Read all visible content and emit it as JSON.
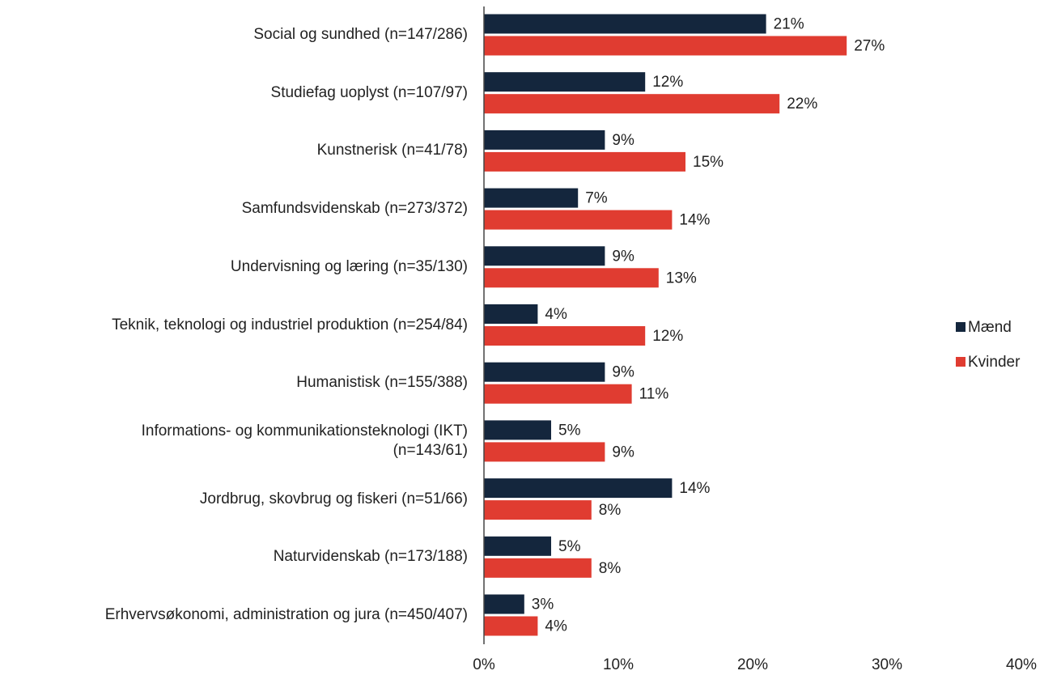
{
  "chart_data": {
    "type": "barh",
    "categories": [
      "Social og sundhed (n=147/286)",
      "Studiefag uoplyst (n=107/97)",
      "Kunstnerisk (n=41/78)",
      "Samfundsvidenskab (n=273/372)",
      "Undervisning og læring (n=35/130)",
      "Teknik, teknologi og industriel produktion (n=254/84)",
      "Humanistisk (n=155/388)",
      "Informations- og kommunikationsteknologi (IKT)\n(n=143/61)",
      "Jordbrug, skovbrug og fiskeri (n=51/66)",
      "Naturvidenskab (n=173/188)",
      "Erhvervsøkonomi, administration og jura (n=450/407)"
    ],
    "series": [
      {
        "name": "Mænd",
        "color": "#14263d",
        "values": [
          21,
          12,
          9,
          7,
          9,
          4,
          9,
          5,
          14,
          5,
          3
        ],
        "value_labels": [
          "21%",
          "12%",
          "9%",
          "7%",
          "9%",
          "4%",
          "9%",
          "5%",
          "14%",
          "5%",
          "3%"
        ]
      },
      {
        "name": "Kvinder",
        "color": "#e03c31",
        "values": [
          27,
          22,
          15,
          14,
          13,
          12,
          11,
          9,
          8,
          8,
          4
        ],
        "value_labels": [
          "27%",
          "22%",
          "15%",
          "14%",
          "13%",
          "12%",
          "11%",
          "9%",
          "8%",
          "8%",
          "4%"
        ]
      }
    ],
    "xlim": [
      0,
      40
    ],
    "xticks": [
      {
        "value": 0,
        "label": "0%"
      },
      {
        "value": 10,
        "label": "10%"
      },
      {
        "value": 20,
        "label": "20%"
      },
      {
        "value": 30,
        "label": "30%"
      },
      {
        "value": 40,
        "label": "40%"
      }
    ],
    "legend": "right"
  }
}
